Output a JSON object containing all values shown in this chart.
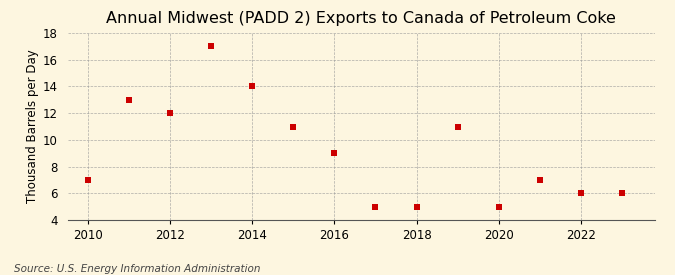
{
  "title": "Annual Midwest (PADD 2) Exports to Canada of Petroleum Coke",
  "ylabel": "Thousand Barrels per Day",
  "source": "Source: U.S. Energy Information Administration",
  "x": [
    2010,
    2011,
    2012,
    2013,
    2014,
    2015,
    2016,
    2017,
    2018,
    2019,
    2020,
    2021,
    2022,
    2023
  ],
  "y": [
    7,
    13,
    12,
    17,
    14,
    11,
    9,
    5,
    5,
    11,
    5,
    7,
    6,
    6
  ],
  "ylim": [
    4,
    18
  ],
  "yticks": [
    4,
    6,
    8,
    10,
    12,
    14,
    16,
    18
  ],
  "xlim": [
    2009.5,
    2023.8
  ],
  "xticks": [
    2010,
    2012,
    2014,
    2016,
    2018,
    2020,
    2022
  ],
  "marker_color": "#cc0000",
  "marker": "s",
  "marker_size": 4.5,
  "background_color": "#fdf6e0",
  "grid_color": "#999999",
  "title_fontsize": 11.5,
  "label_fontsize": 8.5,
  "tick_fontsize": 8.5,
  "source_fontsize": 7.5
}
